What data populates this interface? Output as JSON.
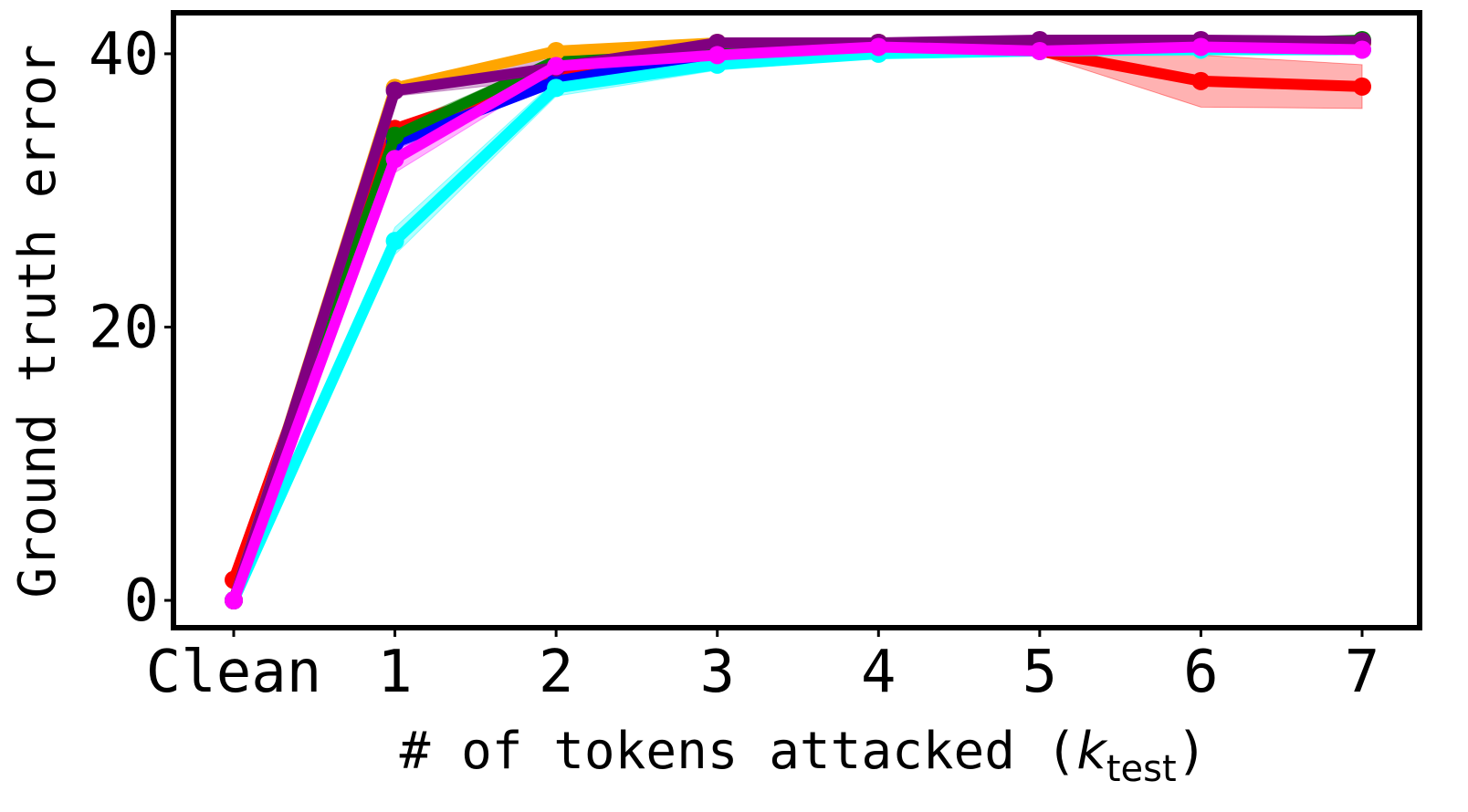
{
  "chart_data": {
    "type": "line",
    "xlabel": {
      "text": "# of tokens attacked (",
      "var": "k",
      "sub": "test",
      "close": ")"
    },
    "ylabel": "Ground truth error",
    "categories": [
      "Clean",
      "1",
      "2",
      "3",
      "4",
      "5",
      "6",
      "7"
    ],
    "ylim": [
      -2,
      43
    ],
    "yticks": [
      0,
      20,
      40
    ],
    "series": [
      {
        "color": "#ff0000",
        "values": [
          1.5,
          34.5,
          38.5,
          40,
          40.5,
          40.2,
          38,
          37.6
        ],
        "errors": [
          0.2,
          0.4,
          0.4,
          0.3,
          0.2,
          0.3,
          1.9,
          1.6
        ]
      },
      {
        "color": "#0000ff",
        "values": [
          0,
          33.5,
          38,
          40,
          40.5,
          40.5,
          40.8,
          40.8
        ],
        "errors": [
          0,
          0.5,
          0.3,
          0.2,
          0.2,
          0.2,
          0.2,
          0.2
        ]
      },
      {
        "color": "#008000",
        "values": [
          0,
          34,
          39.5,
          40.5,
          40.8,
          40.8,
          40.7,
          41
        ],
        "errors": [
          0,
          0.6,
          0.3,
          0.2,
          0.2,
          0.2,
          0.2,
          0.2
        ]
      },
      {
        "color": "#ffa500",
        "values": [
          0,
          37.5,
          40.2,
          40.8,
          40.8,
          40.8,
          40.8,
          40.8
        ],
        "errors": [
          0,
          0.3,
          0.2,
          0.2,
          0.2,
          0.2,
          0.2,
          0.2
        ]
      },
      {
        "color": "#00ffff",
        "values": [
          0,
          26.3,
          37.5,
          39.2,
          40,
          40.2,
          40.3,
          40.3
        ],
        "errors": [
          0,
          1.0,
          0.6,
          0.4,
          0.3,
          0.2,
          0.2,
          0.2
        ]
      },
      {
        "color": "#800080",
        "values": [
          0,
          37.3,
          39,
          40.8,
          40.8,
          41,
          41,
          40.9
        ],
        "errors": [
          0,
          0.4,
          0.8,
          0.2,
          0.2,
          0.2,
          0.2,
          0.2
        ]
      },
      {
        "color": "#ff00ff",
        "values": [
          0,
          32.3,
          39.1,
          39.9,
          40.5,
          40.2,
          40.5,
          40.3
        ],
        "errors": [
          0,
          1.0,
          0.5,
          0.3,
          0.2,
          0.2,
          0.2,
          0.2
        ]
      }
    ]
  }
}
